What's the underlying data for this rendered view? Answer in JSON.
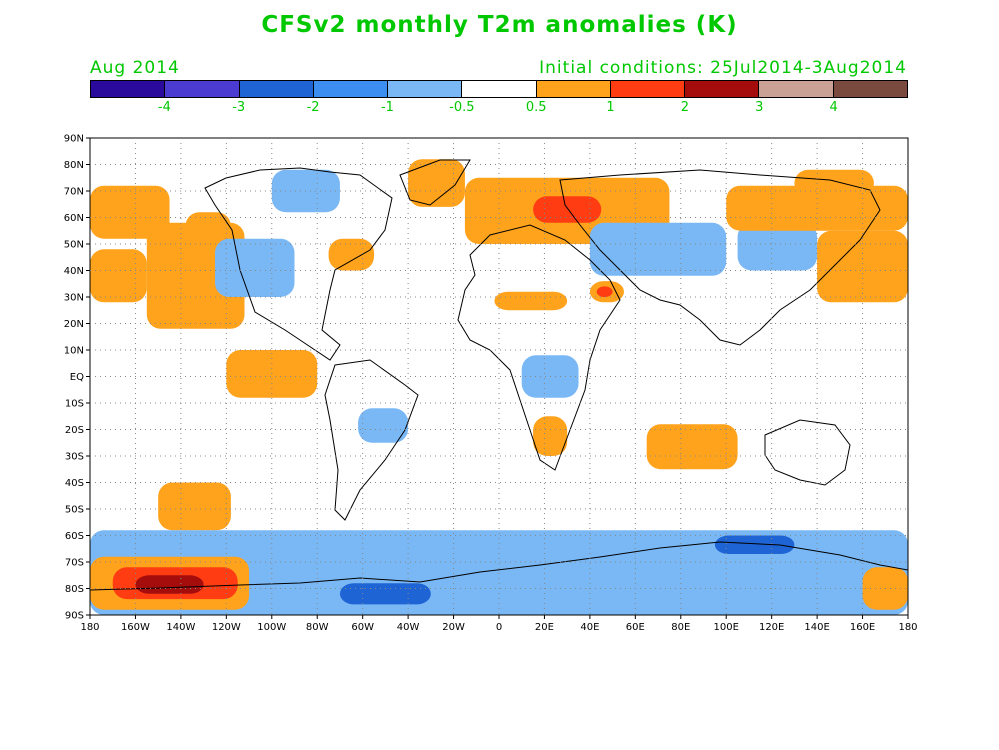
{
  "title": "CFSv2 monthly T2m anomalies (K)",
  "subtitle_left": "Aug 2014",
  "subtitle_right": "Initial conditions: 25Jul2014-3Aug2014",
  "colorbar": {
    "colors": [
      "#2a0a9c",
      "#4b3bd1",
      "#1f64d4",
      "#3c8ff0",
      "#7ab8f5",
      "#ffffff",
      "#ffa21c",
      "#ff3c12",
      "#a50d0d",
      "#c9a295",
      "#7a4a3e"
    ],
    "labels": [
      "-4",
      "-3",
      "-2",
      "-1",
      "-0.5",
      "0.5",
      "1",
      "2",
      "3",
      "4"
    ]
  },
  "lat_labels": [
    "90N",
    "80N",
    "70N",
    "60N",
    "50N",
    "40N",
    "30N",
    "20N",
    "10N",
    "EQ",
    "10S",
    "20S",
    "30S",
    "40S",
    "50S",
    "60S",
    "70S",
    "80S",
    "90S"
  ],
  "lon_labels": [
    "180",
    "160W",
    "140W",
    "120W",
    "100W",
    "80W",
    "60W",
    "40W",
    "20W",
    "0",
    "20E",
    "40E",
    "60E",
    "80E",
    "100E",
    "120E",
    "140E",
    "160E",
    "180"
  ],
  "anomaly_regions": [
    {
      "level": "warm",
      "lon": [
        -180,
        -145
      ],
      "lat": [
        72,
        52
      ]
    },
    {
      "level": "warm",
      "lon": [
        -180,
        -155
      ],
      "lat": [
        48,
        28
      ]
    },
    {
      "level": "warm",
      "lon": [
        -155,
        -112
      ],
      "lat": [
        58,
        18
      ]
    },
    {
      "level": "warm",
      "lon": [
        -138,
        -118
      ],
      "lat": [
        62,
        45
      ]
    },
    {
      "level": "cool",
      "lon": [
        -125,
        -90
      ],
      "lat": [
        52,
        30
      ]
    },
    {
      "level": "cool",
      "lon": [
        -100,
        -70
      ],
      "lat": [
        78,
        62
      ]
    },
    {
      "level": "warm",
      "lon": [
        -75,
        -55
      ],
      "lat": [
        52,
        40
      ]
    },
    {
      "level": "warm",
      "lon": [
        -40,
        -15
      ],
      "lat": [
        82,
        64
      ]
    },
    {
      "level": "warm",
      "lon": [
        -15,
        75
      ],
      "lat": [
        75,
        50
      ]
    },
    {
      "level": "hot",
      "lon": [
        15,
        45
      ],
      "lat": [
        68,
        58
      ]
    },
    {
      "level": "cool",
      "lon": [
        40,
        100
      ],
      "lat": [
        58,
        38
      ]
    },
    {
      "level": "cool",
      "lon": [
        105,
        140
      ],
      "lat": [
        58,
        40
      ]
    },
    {
      "level": "warm",
      "lon": [
        -2,
        30
      ],
      "lat": [
        32,
        25
      ]
    },
    {
      "level": "warm",
      "lon": [
        40,
        55
      ],
      "lat": [
        36,
        28
      ]
    },
    {
      "level": "hot",
      "lon": [
        43,
        50
      ],
      "lat": [
        34,
        30
      ]
    },
    {
      "level": "warm",
      "lon": [
        100,
        180
      ],
      "lat": [
        72,
        55
      ]
    },
    {
      "level": "warm",
      "lon": [
        140,
        180
      ],
      "lat": [
        55,
        28
      ]
    },
    {
      "level": "warm",
      "lon": [
        130,
        165
      ],
      "lat": [
        78,
        68
      ]
    },
    {
      "level": "cool",
      "lon": [
        10,
        35
      ],
      "lat": [
        8,
        -8
      ]
    },
    {
      "level": "warm",
      "lon": [
        -120,
        -80
      ],
      "lat": [
        10,
        -8
      ]
    },
    {
      "level": "cool",
      "lon": [
        -62,
        -40
      ],
      "lat": [
        -12,
        -25
      ]
    },
    {
      "level": "warm",
      "lon": [
        15,
        30
      ],
      "lat": [
        -15,
        -30
      ]
    },
    {
      "level": "warm",
      "lon": [
        65,
        105
      ],
      "lat": [
        -18,
        -35
      ]
    },
    {
      "level": "warm",
      "lon": [
        -150,
        -118
      ],
      "lat": [
        -40,
        -58
      ]
    },
    {
      "level": "cool",
      "lon": [
        -180,
        180
      ],
      "lat": [
        -58,
        -90
      ]
    },
    {
      "level": "warm",
      "lon": [
        -180,
        -110
      ],
      "lat": [
        -68,
        -88
      ]
    },
    {
      "level": "hot",
      "lon": [
        -170,
        -115
      ],
      "lat": [
        -72,
        -84
      ]
    },
    {
      "level": "extreme",
      "lon": [
        -160,
        -130
      ],
      "lat": [
        -75,
        -82
      ]
    },
    {
      "level": "warm",
      "lon": [
        160,
        180
      ],
      "lat": [
        -72,
        -88
      ]
    },
    {
      "level": "coldcore",
      "lon": [
        95,
        130
      ],
      "lat": [
        -60,
        -67
      ]
    },
    {
      "level": "coldcore",
      "lon": [
        -70,
        -30
      ],
      "lat": [
        -78,
        -86
      ]
    }
  ]
}
